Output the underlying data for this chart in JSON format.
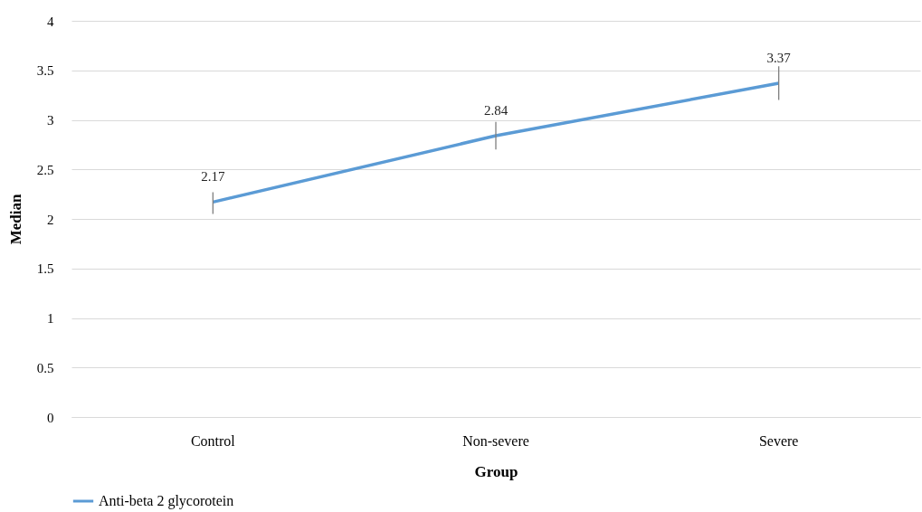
{
  "chart_data": {
    "type": "line",
    "xlabel": "Group",
    "ylabel": "Median",
    "categories": [
      "Control",
      "Non-severe",
      "Severe"
    ],
    "series": [
      {
        "name": "Anti-beta 2 glycorotein",
        "color": "#5b9bd5",
        "values": [
          2.17,
          2.84,
          3.37
        ],
        "errors": [
          [
            2.05,
            2.27
          ],
          [
            2.7,
            2.98
          ],
          [
            3.2,
            3.54
          ]
        ]
      }
    ],
    "ylim": [
      0,
      4
    ],
    "yticks": [
      0,
      0.5,
      1,
      1.5,
      2,
      2.5,
      3,
      3.5,
      4
    ],
    "grid": "y",
    "legend": "bottom",
    "data_labels": true,
    "marker": "none",
    "line_style": "solid"
  }
}
